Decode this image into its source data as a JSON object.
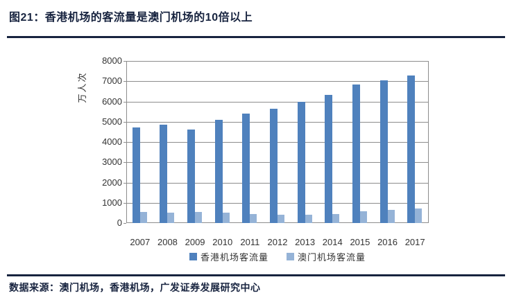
{
  "footer": {
    "source": "数据来源：澳门机场，香港机场，广发证券发展研究中心"
  },
  "colors": {
    "accent_navy": "#17233F",
    "hk_bar": "#4F81BD",
    "macau_bar": "#95B3D7",
    "grid_gray": "#8C8C8C",
    "tick_text": "#333333"
  },
  "chart_data": {
    "type": "bar",
    "title": "图21：香港机场的客流量是澳门机场的10倍以上",
    "xlabel": "",
    "ylabel": "万人次",
    "categories": [
      "2007",
      "2008",
      "2009",
      "2010",
      "2011",
      "2012",
      "2013",
      "2014",
      "2015",
      "2016",
      "2017"
    ],
    "series": [
      {
        "name": "香港机场客流量",
        "color": "#4F81BD",
        "values": [
          4730,
          4860,
          4610,
          5090,
          5390,
          5650,
          5990,
          6330,
          6850,
          7050,
          7290
        ]
      },
      {
        "name": "澳门机场客流量",
        "color": "#95B3D7",
        "values": [
          550,
          510,
          540,
          510,
          450,
          415,
          420,
          435,
          580,
          665,
          720
        ]
      }
    ],
    "ylim": [
      0,
      8000
    ],
    "ytick_step": 1000,
    "grid": true,
    "legend_position": "bottom"
  }
}
